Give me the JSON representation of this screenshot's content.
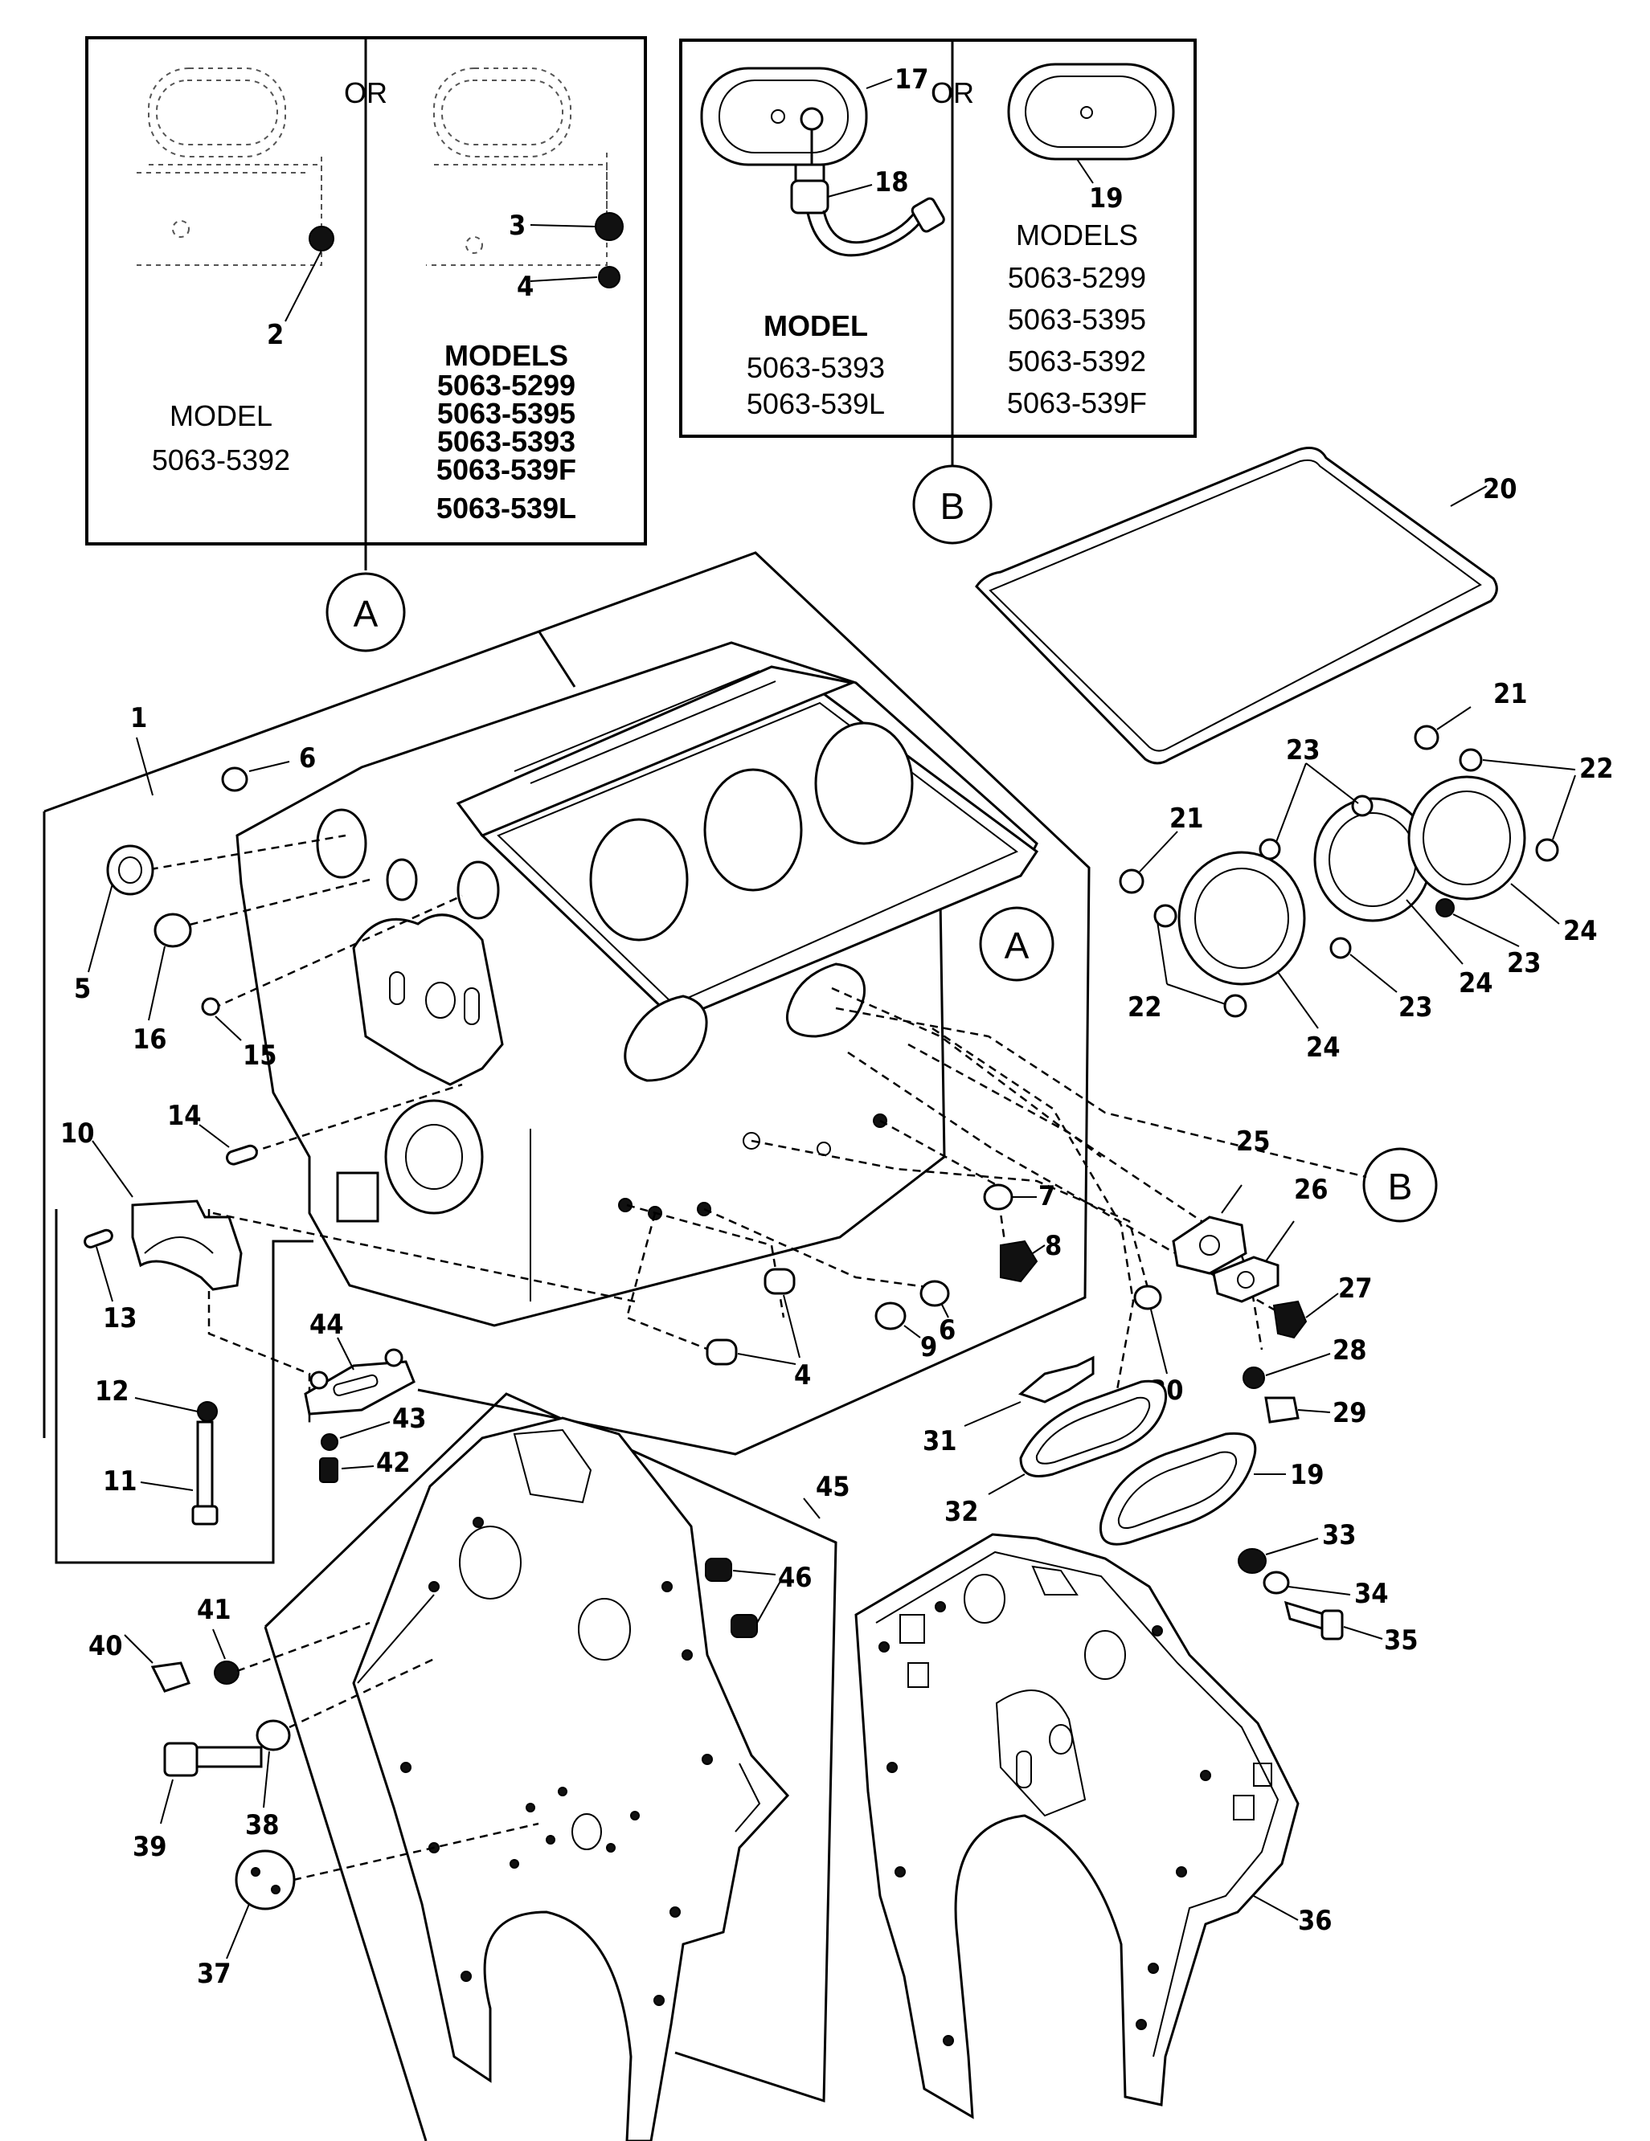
{
  "inset_a": {
    "or_label": "OR",
    "left_model_heading": "MODEL",
    "left_models": [
      "5063-5392"
    ],
    "right_model_heading": "MODELS",
    "right_models": [
      "5063-5299",
      "5063-5395",
      "5063-5393",
      "5063-539F",
      "5063-539L"
    ],
    "callout": "A"
  },
  "inset_b": {
    "or_label": "OR",
    "left_model_heading": "MODEL",
    "left_models": [
      "5063-5393",
      "5063-539L"
    ],
    "right_model_heading": "MODELS",
    "right_models": [
      "5063-5299",
      "5063-5395",
      "5063-5392",
      "5063-539F"
    ],
    "callout": "B"
  },
  "block_callouts": {
    "a": "A",
    "b": "B"
  },
  "part_numbers": [
    "1",
    "2",
    "3",
    "4",
    "5",
    "6",
    "7",
    "8",
    "9",
    "10",
    "11",
    "12",
    "13",
    "14",
    "15",
    "16",
    "17",
    "18",
    "19",
    "20",
    "21",
    "22",
    "23",
    "24",
    "25",
    "26",
    "27",
    "28",
    "29",
    "30",
    "31",
    "32",
    "33",
    "34",
    "35",
    "36",
    "37",
    "38",
    "39",
    "40",
    "41",
    "42",
    "43",
    "44",
    "45",
    "46"
  ]
}
